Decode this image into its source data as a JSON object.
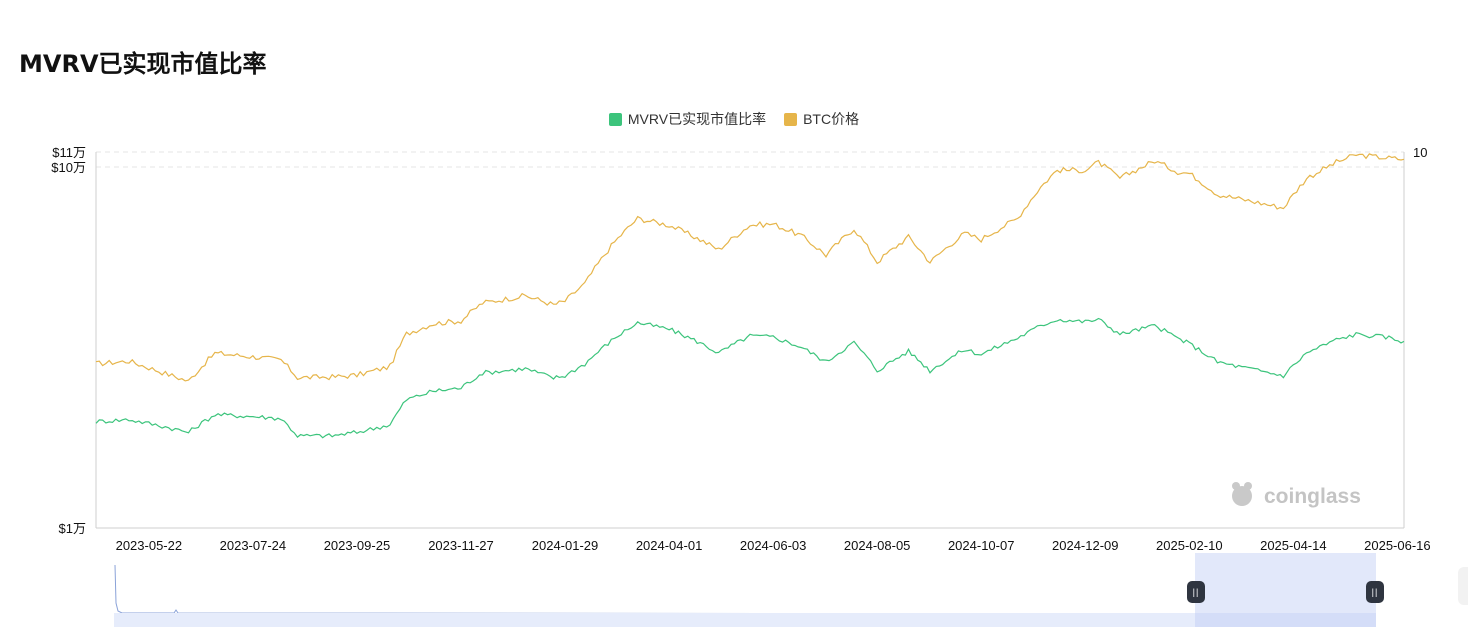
{
  "title": "MVRV已实现市值比率",
  "legend": [
    {
      "label": "MVRV已实现市值比率",
      "color": "#3cc47c"
    },
    {
      "label": "BTC价格",
      "color": "#e6b54a"
    }
  ],
  "watermark": "coinglass",
  "slider": {
    "left_handle": "||",
    "right_handle": "||"
  },
  "chart_data": {
    "type": "line",
    "x_ticks": [
      "2023-05-22",
      "2023-07-24",
      "2023-09-25",
      "2023-11-27",
      "2024-01-29",
      "2024-04-01",
      "2024-06-03",
      "2024-08-05",
      "2024-10-07",
      "2024-12-09",
      "2025-02-10",
      "2025-04-14",
      "2025-06-16"
    ],
    "y_left_ticks": [
      "$11万",
      "$10万",
      "$1万"
    ],
    "y_right_ticks": [
      "10"
    ],
    "x_range": [
      "2023-04-20",
      "2025-06-20"
    ],
    "y_left_log_range": [
      10000,
      110000
    ],
    "y_left_scale": "log",
    "grid": true,
    "legend_position": "top-center",
    "series": [
      {
        "name": "BTC价格",
        "color": "#e6b54a",
        "axis": "left",
        "x": [
          "2023-04-20",
          "2023-05-10",
          "2023-06-01",
          "2023-06-15",
          "2023-07-01",
          "2023-07-24",
          "2023-08-10",
          "2023-08-20",
          "2023-09-10",
          "2023-09-25",
          "2023-10-15",
          "2023-10-25",
          "2023-11-10",
          "2023-11-27",
          "2023-12-10",
          "2024-01-05",
          "2024-01-22",
          "2024-01-29",
          "2024-02-10",
          "2024-02-28",
          "2024-03-13",
          "2024-04-01",
          "2024-04-18",
          "2024-05-01",
          "2024-05-20",
          "2024-06-03",
          "2024-06-20",
          "2024-07-05",
          "2024-07-22",
          "2024-08-05",
          "2024-08-24",
          "2024-09-06",
          "2024-09-27",
          "2024-10-07",
          "2024-10-29",
          "2024-11-12",
          "2024-11-22",
          "2024-12-09",
          "2024-12-17",
          "2024-12-30",
          "2025-01-20",
          "2025-02-03",
          "2025-02-10",
          "2025-02-27",
          "2025-03-10",
          "2025-04-08",
          "2025-04-22",
          "2025-05-10",
          "2025-05-22",
          "2025-06-09",
          "2025-06-20"
        ],
        "values": [
          28500,
          29000,
          26800,
          25500,
          30500,
          29800,
          29200,
          26100,
          26200,
          26500,
          28000,
          34500,
          36800,
          37500,
          42000,
          44000,
          41500,
          42500,
          47500,
          62000,
          72000,
          69000,
          63500,
          59000,
          69000,
          69500,
          64500,
          57000,
          67500,
          54500,
          64000,
          54500,
          65500,
          63000,
          72000,
          88000,
          98000,
          98000,
          103000,
          93000,
          104000,
          97000,
          96000,
          84000,
          82000,
          77000,
          93000,
          103000,
          108000,
          106000,
          105000
        ]
      },
      {
        "name": "MVRV已实现市值比率",
        "color": "#3cc47c",
        "axis": "right",
        "x": [
          "2023-04-20",
          "2023-05-10",
          "2023-06-01",
          "2023-06-15",
          "2023-07-01",
          "2023-07-24",
          "2023-08-10",
          "2023-08-20",
          "2023-09-10",
          "2023-09-25",
          "2023-10-15",
          "2023-10-25",
          "2023-11-10",
          "2023-11-27",
          "2023-12-10",
          "2024-01-05",
          "2024-01-22",
          "2024-01-29",
          "2024-02-10",
          "2024-02-28",
          "2024-03-13",
          "2024-04-01",
          "2024-04-18",
          "2024-05-01",
          "2024-05-20",
          "2024-06-03",
          "2024-06-20",
          "2024-07-05",
          "2024-07-22",
          "2024-08-05",
          "2024-08-24",
          "2024-09-06",
          "2024-09-27",
          "2024-10-07",
          "2024-10-29",
          "2024-11-12",
          "2024-11-22",
          "2024-12-09",
          "2024-12-17",
          "2024-12-30",
          "2025-01-20",
          "2025-02-03",
          "2025-02-10",
          "2025-02-27",
          "2025-03-10",
          "2025-04-08",
          "2025-04-22",
          "2025-05-10",
          "2025-05-22",
          "2025-06-09",
          "2025-06-20"
        ],
        "values": [
          1.25,
          1.27,
          1.2,
          1.15,
          1.32,
          1.3,
          1.28,
          1.12,
          1.12,
          1.15,
          1.22,
          1.48,
          1.58,
          1.62,
          1.82,
          1.88,
          1.75,
          1.78,
          1.95,
          2.38,
          2.68,
          2.55,
          2.32,
          2.12,
          2.42,
          2.4,
          2.22,
          1.98,
          2.3,
          1.85,
          2.15,
          1.85,
          2.18,
          2.1,
          2.38,
          2.62,
          2.75,
          2.7,
          2.75,
          2.45,
          2.62,
          2.38,
          2.28,
          1.98,
          1.92,
          1.78,
          2.12,
          2.35,
          2.45,
          2.4,
          2.32
        ]
      }
    ]
  }
}
